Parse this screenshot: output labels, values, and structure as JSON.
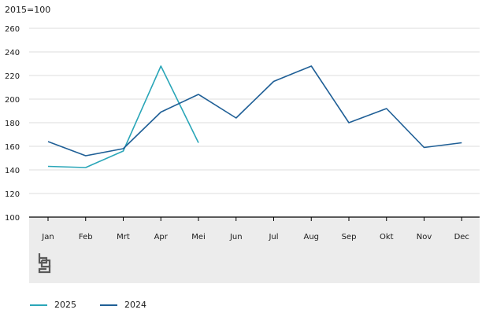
{
  "chart_data": {
    "type": "line",
    "unit_label": "2015=100",
    "categories": [
      "Jan",
      "Feb",
      "Mrt",
      "Apr",
      "Mei",
      "Jun",
      "Jul",
      "Aug",
      "Sep",
      "Okt",
      "Nov",
      "Dec"
    ],
    "yticks": [
      100,
      120,
      140,
      160,
      180,
      200,
      220,
      240,
      260
    ],
    "ylim": [
      100,
      260
    ],
    "grid": true,
    "legend_position": "bottom-left",
    "series": [
      {
        "name": "2025",
        "color": "#2aa6b8",
        "values": [
          143,
          142,
          156,
          228,
          163,
          null,
          null,
          null,
          null,
          null,
          null,
          null
        ]
      },
      {
        "name": "2024",
        "color": "#1f5f96",
        "values": [
          164,
          152,
          158,
          189,
          204,
          184,
          215,
          228,
          180,
          192,
          159,
          163
        ]
      }
    ],
    "logo_icon": "cbs-logo-icon"
  }
}
